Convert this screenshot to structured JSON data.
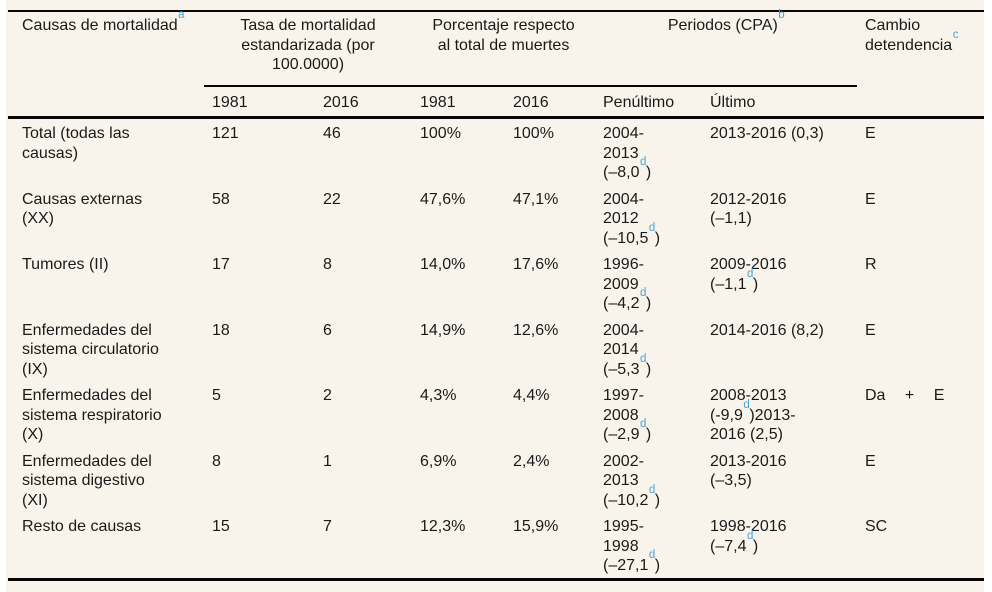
{
  "colors": {
    "panel_background": "#f8f4eb",
    "text": "#1a1a1a",
    "rule": "#060606",
    "footnote_blue": "#4aa3d9"
  },
  "table": {
    "columns": {
      "cause_label": "Causas de mortalidad[a]",
      "groups": {
        "rate": "Tasa de mortalidad\nestandarizada (por\n100.0000)",
        "percentage": "Porcentaje respecto\nal total de muertes",
        "periods": "Periodos (CPA)[b]",
        "change": "Cambio\ndetendencia[c]"
      },
      "subheaders": [
        "1981",
        "2016",
        "1981",
        "2016",
        "Penúltimo",
        "Último"
      ]
    },
    "rows": [
      {
        "cause": "Total (todas las\ncausas)",
        "rate_1981": "121",
        "rate_2016": "46",
        "pct_1981": "100%",
        "pct_2016": "100%",
        "penultimate": "2004-\n2013\n(–8,0[d])",
        "last": "2013-2016 (0,3)",
        "change": "E"
      },
      {
        "cause": "Causas externas\n(XX)",
        "rate_1981": "58",
        "rate_2016": "22",
        "pct_1981": "47,6%",
        "pct_2016": "47,1%",
        "penultimate": "2004-\n2012\n(–10,5[d])",
        "last": "2012-2016\n(–1,1)",
        "change": "E"
      },
      {
        "cause": "Tumores (II)",
        "rate_1981": "17",
        "rate_2016": "8",
        "pct_1981": "14,0%",
        "pct_2016": "17,6%",
        "penultimate": "1996-\n2009\n(–4,2[d])",
        "last": "2009-2016\n(–1,1[d])",
        "change": "R"
      },
      {
        "cause": "Enfermedades del\nsistema circulatorio\n(IX)",
        "rate_1981": "18",
        "rate_2016": "6",
        "pct_1981": "14,9%",
        "pct_2016": "12,6%",
        "penultimate": "2004-\n2014\n(–5,3[d])",
        "last": "2014-2016 (8,2)",
        "change": "E"
      },
      {
        "cause": "Enfermedades del\nsistema respiratorio\n(X)",
        "rate_1981": "5",
        "rate_2016": "2",
        "pct_1981": "4,3%",
        "pct_2016": "4,4%",
        "penultimate": "1997-\n2008\n(–2,9[d])",
        "last": "2008-2013\n(-9,9[d])2013-\n2016 (2,5)",
        "change": "Da + E"
      },
      {
        "cause": "Enfermedades del\nsistema digestivo\n(XI)",
        "rate_1981": "8",
        "rate_2016": "1",
        "pct_1981": "6,9%",
        "pct_2016": "2,4%",
        "penultimate": "2002-\n2013\n(–10,2[d])",
        "last": "2013-2016\n(–3,5)",
        "change": "E"
      },
      {
        "cause": "Resto de causas",
        "rate_1981": "15",
        "rate_2016": "7",
        "pct_1981": "12,3%",
        "pct_2016": "15,9%",
        "penultimate": "1995-\n1998\n(–27,1[d])",
        "last": "1998-2016\n(–7,4[d])",
        "change": "SC"
      }
    ]
  }
}
